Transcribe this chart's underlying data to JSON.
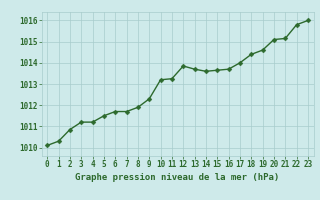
{
  "x": [
    0,
    1,
    2,
    3,
    4,
    5,
    6,
    7,
    8,
    9,
    10,
    11,
    12,
    13,
    14,
    15,
    16,
    17,
    18,
    19,
    20,
    21,
    22,
    23
  ],
  "y": [
    1010.1,
    1010.3,
    1010.85,
    1011.2,
    1011.2,
    1011.5,
    1011.7,
    1011.7,
    1011.9,
    1012.3,
    1013.2,
    1013.25,
    1013.85,
    1013.7,
    1013.6,
    1013.65,
    1013.7,
    1014.0,
    1014.4,
    1014.6,
    1015.1,
    1015.15,
    1015.8,
    1016.0
  ],
  "line_color": "#2d6a2d",
  "marker_color": "#2d6a2d",
  "bg_color": "#ceeaea",
  "grid_color": "#a8cccc",
  "axis_label_color": "#2d6a2d",
  "tick_label_color": "#2d6a2d",
  "xlabel": "Graphe pression niveau de la mer (hPa)",
  "ylim": [
    1009.6,
    1016.4
  ],
  "yticks": [
    1010,
    1011,
    1012,
    1013,
    1014,
    1015,
    1016
  ],
  "xticks": [
    0,
    1,
    2,
    3,
    4,
    5,
    6,
    7,
    8,
    9,
    10,
    11,
    12,
    13,
    14,
    15,
    16,
    17,
    18,
    19,
    20,
    21,
    22,
    23
  ],
  "xlabel_fontsize": 6.5,
  "tick_fontsize": 5.5,
  "line_width": 1.0,
  "marker_size": 2.5
}
